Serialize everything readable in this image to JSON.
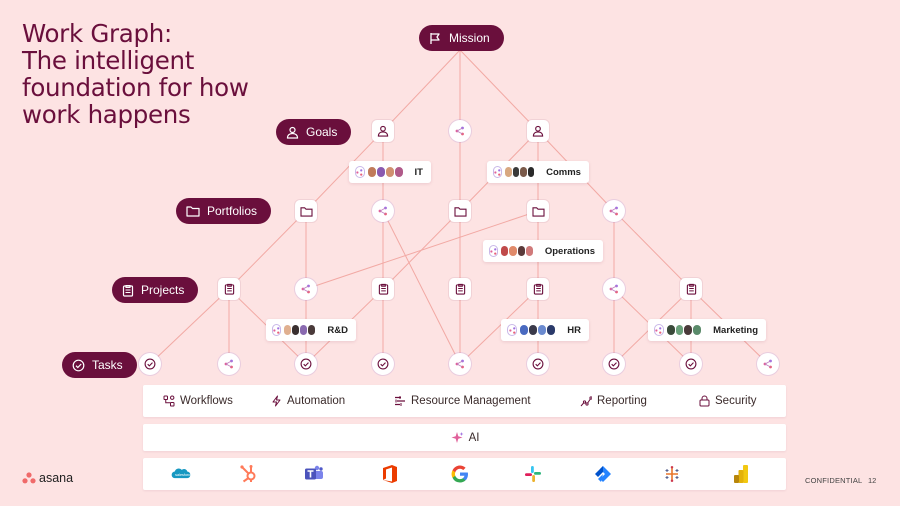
{
  "title": {
    "line1": "Work Graph:",
    "line2": "The intelligent",
    "line3": "foundation for how",
    "line4": "work happens"
  },
  "levels": {
    "mission": "Mission",
    "goals": "Goals",
    "portfolios": "Portfolios",
    "projects": "Projects",
    "tasks": "Tasks"
  },
  "level_icons": {
    "mission": "flag-icon",
    "goals": "person-icon",
    "portfolios": "folder-icon",
    "projects": "clipboard-icon",
    "tasks": "check-circle-icon"
  },
  "teams": {
    "it": "IT",
    "comms": "Comms",
    "operations": "Operations",
    "rnd": "R&D",
    "hr": "HR",
    "marketing": "Marketing"
  },
  "features": {
    "workflows": "Workflows",
    "automation": "Automation",
    "resource_management": "Resource Management",
    "reporting": "Reporting",
    "security": "Security"
  },
  "ai": "AI",
  "integrations": [
    "salesforce-icon",
    "hubspot-icon",
    "teams-icon",
    "office-icon",
    "google-icon",
    "slack-icon",
    "jira-icon",
    "tableau-icon",
    "powerbi-icon"
  ],
  "brand": {
    "name": "asana"
  },
  "footer": {
    "label": "CONFIDENTIAL",
    "page": "12"
  },
  "colors": {
    "background": "#fde3e3",
    "accent": "#6a0f3c",
    "lines": "#f2a9a4"
  }
}
